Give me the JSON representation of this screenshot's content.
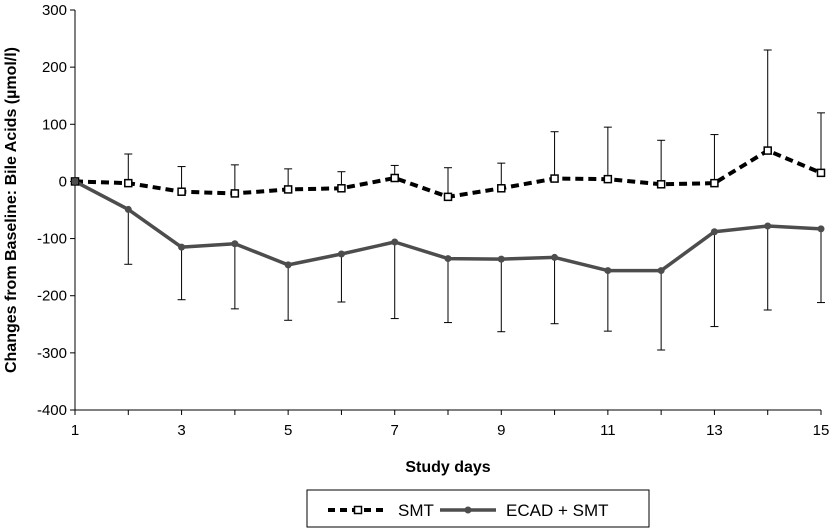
{
  "chart_data": {
    "type": "line",
    "title": "",
    "xlabel": "Study days",
    "ylabel": "Changes from Baseline: Bile Acids (µmol/l)",
    "xlim": [
      1,
      15
    ],
    "ylim": [
      -400,
      300
    ],
    "x_ticks": [
      1,
      3,
      5,
      7,
      9,
      11,
      13,
      15
    ],
    "y_ticks": [
      -400,
      -300,
      -200,
      -100,
      0,
      100,
      200,
      300
    ],
    "grid": false,
    "legend_position": "bottom",
    "x": [
      1,
      2,
      3,
      4,
      5,
      6,
      7,
      8,
      9,
      10,
      11,
      12,
      13,
      14,
      15
    ],
    "series": [
      {
        "name": "SMT",
        "style": "dashed",
        "marker": "open-square",
        "color": "#000000",
        "values": [
          0,
          -3,
          -18,
          -21,
          -14,
          -12,
          6,
          -27,
          -12,
          5,
          4,
          -5,
          -3,
          54,
          15
        ],
        "error_upper": [
          0,
          48,
          26,
          29,
          22,
          17,
          28,
          24,
          32,
          87,
          95,
          72,
          82,
          230,
          120
        ]
      },
      {
        "name": "ECAD + SMT",
        "style": "solid",
        "marker": "filled-circle",
        "color": "#4d4d4d",
        "values": [
          0,
          -49,
          -115,
          -109,
          -146,
          -127,
          -106,
          -135,
          -136,
          -133,
          -156,
          -156,
          -88,
          -78,
          -83
        ],
        "error_lower": [
          0,
          -145,
          -207,
          -223,
          -243,
          -211,
          -240,
          -247,
          -263,
          -249,
          -262,
          -295,
          -254,
          -225,
          -212
        ]
      }
    ]
  }
}
